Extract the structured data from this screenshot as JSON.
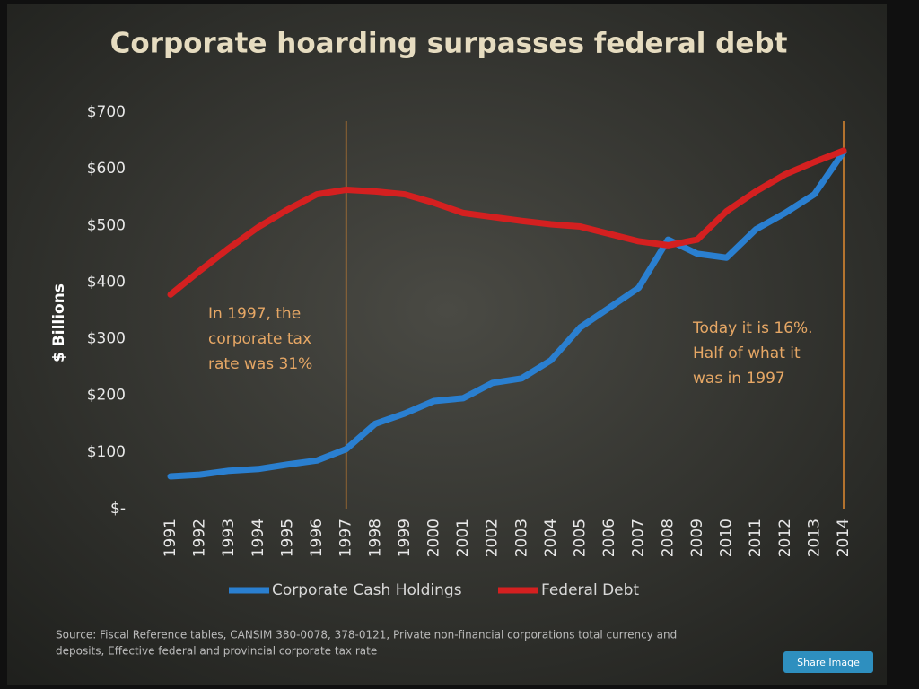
{
  "chart_data": {
    "type": "line",
    "title": "Corporate hoarding surpasses federal debt",
    "ylabel": "$ Billions",
    "categories": [
      "1991",
      "1992",
      "1993",
      "1994",
      "1995",
      "1996",
      "1997",
      "1998",
      "1999",
      "2000",
      "2001",
      "2002",
      "2003",
      "2004",
      "2005",
      "2006",
      "2007",
      "2008",
      "2009",
      "2010",
      "2011",
      "2012",
      "2013",
      "2014"
    ],
    "series": [
      {
        "name": "Corporate Cash Holdings",
        "color": "#2a7fd0",
        "values": [
          57,
          60,
          67,
          70,
          78,
          85,
          105,
          150,
          168,
          190,
          195,
          222,
          230,
          262,
          320,
          355,
          390,
          475,
          450,
          443,
          493,
          522,
          555,
          630
        ]
      },
      {
        "name": "Federal Debt",
        "color": "#d42020",
        "values": [
          378,
          420,
          460,
          497,
          528,
          555,
          563,
          560,
          555,
          540,
          522,
          515,
          508,
          502,
          498,
          485,
          472,
          465,
          475,
          525,
          560,
          590,
          612,
          632
        ]
      }
    ],
    "ylim": [
      0,
      700
    ],
    "yticks": [
      {
        "value": 0,
        "label": "$-"
      },
      {
        "value": 100,
        "label": "$100"
      },
      {
        "value": 200,
        "label": "$200"
      },
      {
        "value": 300,
        "label": "$300"
      },
      {
        "value": 400,
        "label": "$400"
      },
      {
        "value": 500,
        "label": "$500"
      },
      {
        "value": 600,
        "label": "$600"
      },
      {
        "value": 700,
        "label": "$700"
      }
    ],
    "annotations": [
      {
        "x": "1997",
        "lines": [
          "In 1997, the",
          "corporate tax",
          "rate was 31%"
        ]
      },
      {
        "x": "2014",
        "lines": [
          "Today it is 16%.",
          "Half of what it",
          "was in 1997"
        ]
      }
    ],
    "source": [
      "Source:  Fiscal Reference tables, CANSIM 380-0078, 378-0121, Private non-financial corporations total currency and",
      "deposits,  Effective federal and provincial corporate tax rate"
    ],
    "button": "Share Image"
  }
}
